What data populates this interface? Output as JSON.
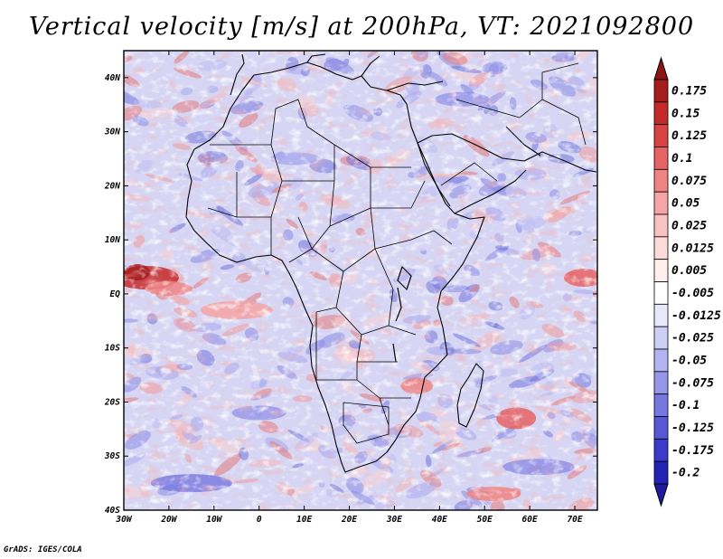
{
  "title": "Vertical velocity [m/s] at 200hPa, VT: 2021092800",
  "footer": "GrADS: IGES/COLA",
  "map": {
    "lon_range": [
      -30,
      75
    ],
    "lat_range": [
      -40,
      45
    ],
    "lat_ticks": [
      {
        "value": 40,
        "label": "40N"
      },
      {
        "value": 30,
        "label": "30N"
      },
      {
        "value": 20,
        "label": "20N"
      },
      {
        "value": 10,
        "label": "10N"
      },
      {
        "value": 0,
        "label": "EQ"
      },
      {
        "value": -10,
        "label": "10S"
      },
      {
        "value": -20,
        "label": "20S"
      },
      {
        "value": -30,
        "label": "30S"
      },
      {
        "value": -40,
        "label": "40S"
      }
    ],
    "lon_ticks": [
      {
        "value": -30,
        "label": "30W"
      },
      {
        "value": -20,
        "label": "20W"
      },
      {
        "value": -10,
        "label": "10W"
      },
      {
        "value": 0,
        "label": "0"
      },
      {
        "value": 10,
        "label": "10E"
      },
      {
        "value": 20,
        "label": "20E"
      },
      {
        "value": 30,
        "label": "30E"
      },
      {
        "value": 40,
        "label": "40E"
      },
      {
        "value": 50,
        "label": "50E"
      },
      {
        "value": 60,
        "label": "60E"
      },
      {
        "value": 70,
        "label": "70E"
      }
    ],
    "background_color": "#d6d6f4"
  },
  "colorbar": {
    "levels": [
      {
        "label": "0.175",
        "color": "#a51c1c"
      },
      {
        "label": "0.15",
        "color": "#c52a2a"
      },
      {
        "label": "0.125",
        "color": "#d84343"
      },
      {
        "label": "0.1",
        "color": "#e66363"
      },
      {
        "label": "0.075",
        "color": "#ef8484"
      },
      {
        "label": "0.05",
        "color": "#f5a5a5"
      },
      {
        "label": "0.025",
        "color": "#f9c2c2"
      },
      {
        "label": "0.0125",
        "color": "#fcdada"
      },
      {
        "label": "0.005",
        "color": "#feeeee"
      },
      {
        "label": "-0.005",
        "color": "#ffffff"
      },
      {
        "label": "-0.0125",
        "color": "#e8e8fb"
      },
      {
        "label": "-0.025",
        "color": "#cfcff6"
      },
      {
        "label": "-0.05",
        "color": "#b4b4f0"
      },
      {
        "label": "-0.075",
        "color": "#9696e8"
      },
      {
        "label": "-0.1",
        "color": "#7777e0"
      },
      {
        "label": "-0.125",
        "color": "#5858d6"
      },
      {
        "label": "-0.175",
        "color": "#3b3bca"
      },
      {
        "label": "-0.2",
        "color": "#2323b6"
      }
    ],
    "top_arrow_color": "#8e1414",
    "bottom_arrow_color": "#1c1c9c"
  }
}
